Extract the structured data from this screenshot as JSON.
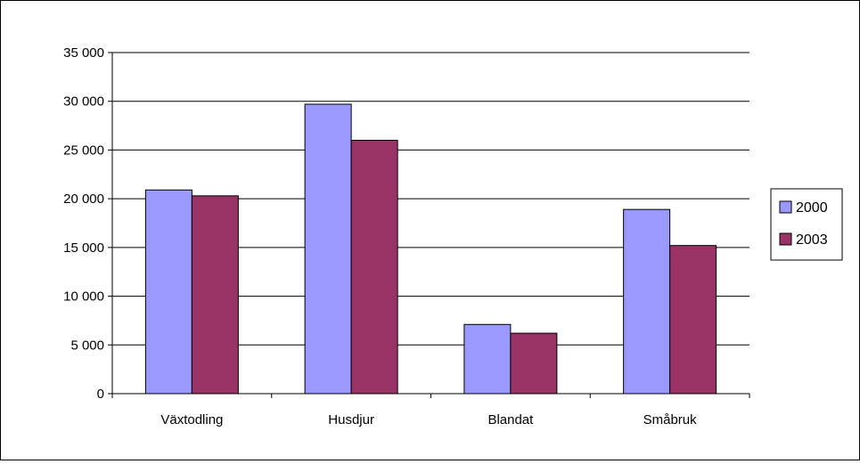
{
  "chart_data": {
    "type": "bar",
    "title": "",
    "xlabel": "",
    "ylabel": "",
    "categories": [
      "Växtodling",
      "Husdjur",
      "Blandat",
      "Småbruk"
    ],
    "series": [
      {
        "name": "2000",
        "color": "#9999ff",
        "values": [
          20900,
          29700,
          7100,
          18900
        ]
      },
      {
        "name": "2003",
        "color": "#993366",
        "values": [
          20300,
          26000,
          6200,
          15200
        ]
      }
    ],
    "ylim": [
      0,
      35000
    ],
    "yticks": [
      0,
      5000,
      10000,
      15000,
      20000,
      25000,
      30000,
      35000
    ],
    "ytick_labels": [
      "0",
      "5 000",
      "10 000",
      "15 000",
      "20 000",
      "25 000",
      "30 000",
      "35 000"
    ],
    "grid": true,
    "legend_position": "right"
  }
}
